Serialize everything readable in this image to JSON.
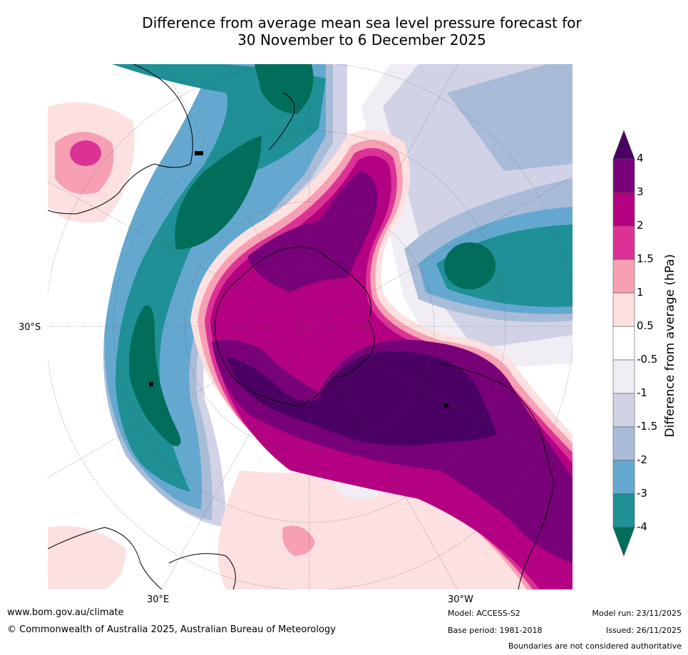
{
  "title": {
    "line1": "Difference from average mean sea level pressure forecast for",
    "line2": "30 November to 6 December 2025"
  },
  "map": {
    "labels": {
      "lat_left": "30°S",
      "lon_bottom_left": "30°E",
      "lon_bottom_right": "30°W"
    }
  },
  "colorbar": {
    "title": "Difference from average (hPa)",
    "ticks": [
      "4",
      "3",
      "2",
      "1.5",
      "1",
      "0.5",
      "-0.5",
      "-1",
      "-1.5",
      "-2",
      "-3",
      "-4"
    ],
    "colors": [
      "#4b0064",
      "#780078",
      "#b40082",
      "#dc3296",
      "#f7a0b4",
      "#fde0e0",
      "#ffffff",
      "#f0eef4",
      "#d2d2e6",
      "#a8bcd8",
      "#64a8d0",
      "#1e9096",
      "#006e5a"
    ]
  },
  "footer": {
    "website": "www.bom.gov.au/climate",
    "copyright": "© Commonwealth of Australia 2025, Australian Bureau of Meteorology",
    "model": "Model: ACCESS-S2",
    "base_period": "Base period: 1981-2018",
    "model_run": "Model run: 23/11/2025",
    "issued": "Issued: 26/11/2025",
    "disclaimer": "Boundaries are not considered authoritative"
  }
}
